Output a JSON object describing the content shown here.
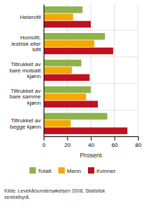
{
  "chart_data": {
    "type": "bar",
    "orientation": "horizontal",
    "categories": [
      "Heterofil",
      "Homofil,\nlesbisk eller\nbifil",
      "Tiltrukket av\nbare motsatt\nkjønn",
      "Tiltrukket av\nbare samme\nkjønn",
      "Tiltrukket av\nbegge kjønn"
    ],
    "series": [
      {
        "name": "Totalt",
        "color": "#8db34a",
        "values": [
          33,
          52,
          32,
          40,
          54
        ]
      },
      {
        "name": "Menn",
        "color": "#f5a800",
        "values": [
          25,
          43,
          24,
          36,
          23
        ]
      },
      {
        "name": "Kvinner",
        "color": "#c0111f",
        "values": [
          40,
          59,
          39,
          46,
          71
        ]
      }
    ],
    "xlim": [
      0,
      80
    ],
    "xticks": [
      0,
      20,
      40,
      60,
      80
    ],
    "xlabel": "Prosent",
    "grid": true,
    "legend": "bottom",
    "annotations": [
      "Kilde: Levekårsundersøkelsen 2008, Statistisk\nsentralbyrå."
    ]
  }
}
